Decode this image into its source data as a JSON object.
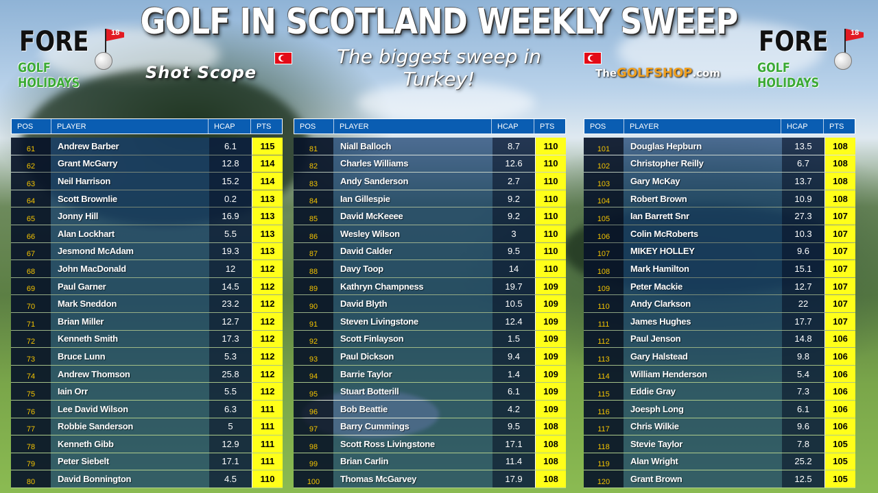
{
  "header": {
    "title": "GOLF IN SCOTLAND WEEKLY SWEEP",
    "subtitle": "The biggest sweep in Turkey!",
    "logo_left": {
      "line1": "FORE",
      "line2": "GOLF HOLIDAYS",
      "badge": "18"
    },
    "logo_right": {
      "line1": "FORE",
      "line2": "GOLF HOLIDAYS",
      "badge": "18"
    },
    "sponsor_shot": "Shot Scope",
    "sponsor_shop": {
      "pre": "The",
      "highlight": "GOLFSHOP",
      "post": ".com"
    }
  },
  "columns": {
    "pos": "POS",
    "player": "PLAYER",
    "hcap": "HCAP",
    "pts": "PTS"
  },
  "tables": [
    {
      "rows": [
        {
          "pos": "61",
          "player": "Andrew Barber",
          "hcap": "6.1",
          "pts": "115"
        },
        {
          "pos": "62",
          "player": "Grant McGarry",
          "hcap": "12.8",
          "pts": "114"
        },
        {
          "pos": "63",
          "player": "Neil Harrison",
          "hcap": "15.2",
          "pts": "114"
        },
        {
          "pos": "64",
          "player": "Scott Brownlie",
          "hcap": "0.2",
          "pts": "113"
        },
        {
          "pos": "65",
          "player": "Jonny Hill",
          "hcap": "16.9",
          "pts": "113"
        },
        {
          "pos": "66",
          "player": "Alan Lockhart",
          "hcap": "5.5",
          "pts": "113"
        },
        {
          "pos": "67",
          "player": "Jesmond McAdam",
          "hcap": "19.3",
          "pts": "113"
        },
        {
          "pos": "68",
          "player": "John MacDonald",
          "hcap": "12",
          "pts": "112"
        },
        {
          "pos": "69",
          "player": "Paul Garner",
          "hcap": "14.5",
          "pts": "112"
        },
        {
          "pos": "70",
          "player": "Mark Sneddon",
          "hcap": "23.2",
          "pts": "112"
        },
        {
          "pos": "71",
          "player": "Brian Miller",
          "hcap": "12.7",
          "pts": "112"
        },
        {
          "pos": "72",
          "player": "Kenneth Smith",
          "hcap": "17.3",
          "pts": "112"
        },
        {
          "pos": "73",
          "player": "Bruce Lunn",
          "hcap": "5.3",
          "pts": "112"
        },
        {
          "pos": "74",
          "player": "Andrew Thomson",
          "hcap": "25.8",
          "pts": "112"
        },
        {
          "pos": "75",
          "player": "Iain Orr",
          "hcap": "5.5",
          "pts": "112"
        },
        {
          "pos": "76",
          "player": "Lee David Wilson",
          "hcap": "6.3",
          "pts": "111"
        },
        {
          "pos": "77",
          "player": "Robbie Sanderson",
          "hcap": "5",
          "pts": "111"
        },
        {
          "pos": "78",
          "player": "Kenneth Gibb",
          "hcap": "12.9",
          "pts": "111"
        },
        {
          "pos": "79",
          "player": "Peter Siebelt",
          "hcap": "17.1",
          "pts": "111"
        },
        {
          "pos": "80",
          "player": "David Bonnington",
          "hcap": "4.5",
          "pts": "110"
        }
      ]
    },
    {
      "rows": [
        {
          "pos": "81",
          "player": "Niall Balloch",
          "hcap": "8.7",
          "pts": "110"
        },
        {
          "pos": "82",
          "player": "Charles Williams",
          "hcap": "12.6",
          "pts": "110"
        },
        {
          "pos": "83",
          "player": "Andy Sanderson",
          "hcap": "2.7",
          "pts": "110"
        },
        {
          "pos": "84",
          "player": "Ian Gillespie",
          "hcap": "9.2",
          "pts": "110"
        },
        {
          "pos": "85",
          "player": "David McKeeee",
          "hcap": "9.2",
          "pts": "110"
        },
        {
          "pos": "86",
          "player": "Wesley Wilson",
          "hcap": "3",
          "pts": "110"
        },
        {
          "pos": "87",
          "player": "David Calder",
          "hcap": "9.5",
          "pts": "110"
        },
        {
          "pos": "88",
          "player": "Davy Toop",
          "hcap": "14",
          "pts": "110"
        },
        {
          "pos": "89",
          "player": "Kathryn Champness",
          "hcap": "19.7",
          "pts": "109"
        },
        {
          "pos": "90",
          "player": "David Blyth",
          "hcap": "10.5",
          "pts": "109"
        },
        {
          "pos": "91",
          "player": "Steven Livingstone",
          "hcap": "12.4",
          "pts": "109"
        },
        {
          "pos": "92",
          "player": "Scott Finlayson",
          "hcap": "1.5",
          "pts": "109"
        },
        {
          "pos": "93",
          "player": "Paul Dickson",
          "hcap": "9.4",
          "pts": "109"
        },
        {
          "pos": "94",
          "player": "Barrie Taylor",
          "hcap": "1.4",
          "pts": "109"
        },
        {
          "pos": "95",
          "player": "Stuart Botterill",
          "hcap": "6.1",
          "pts": "109"
        },
        {
          "pos": "96",
          "player": "Bob Beattie",
          "hcap": "4.2",
          "pts": "109"
        },
        {
          "pos": "97",
          "player": "Barry Cummings",
          "hcap": "9.5",
          "pts": "108"
        },
        {
          "pos": "98",
          "player": "Scott Ross Livingstone",
          "hcap": "17.1",
          "pts": "108"
        },
        {
          "pos": "99",
          "player": "Brian Carlin",
          "hcap": "11.4",
          "pts": "108"
        },
        {
          "pos": "100",
          "player": "Thomas McGarvey",
          "hcap": "17.9",
          "pts": "108"
        }
      ]
    },
    {
      "rows": [
        {
          "pos": "101",
          "player": "Douglas Hepburn",
          "hcap": "13.5",
          "pts": "108"
        },
        {
          "pos": "102",
          "player": "Christopher Reilly",
          "hcap": "6.7",
          "pts": "108"
        },
        {
          "pos": "103",
          "player": "Gary McKay",
          "hcap": "13.7",
          "pts": "108"
        },
        {
          "pos": "104",
          "player": "Robert Brown",
          "hcap": "10.9",
          "pts": "108"
        },
        {
          "pos": "105",
          "player": "Ian Barrett Snr",
          "hcap": "27.3",
          "pts": "107"
        },
        {
          "pos": "106",
          "player": "Colin McRoberts",
          "hcap": "10.3",
          "pts": "107"
        },
        {
          "pos": "107",
          "player": "MIKEY HOLLEY",
          "hcap": "9.6",
          "pts": "107"
        },
        {
          "pos": "108",
          "player": "Mark Hamilton",
          "hcap": "15.1",
          "pts": "107"
        },
        {
          "pos": "109",
          "player": "Peter Mackie",
          "hcap": "12.7",
          "pts": "107"
        },
        {
          "pos": "110",
          "player": "Andy Clarkson",
          "hcap": "22",
          "pts": "107"
        },
        {
          "pos": "111",
          "player": "James Hughes",
          "hcap": "17.7",
          "pts": "107"
        },
        {
          "pos": "112",
          "player": "Paul Jenson",
          "hcap": "14.8",
          "pts": "106"
        },
        {
          "pos": "113",
          "player": "Gary Halstead",
          "hcap": "9.8",
          "pts": "106"
        },
        {
          "pos": "114",
          "player": "William Henderson",
          "hcap": "5.4",
          "pts": "106"
        },
        {
          "pos": "115",
          "player": "Eddie Gray",
          "hcap": "7.3",
          "pts": "106"
        },
        {
          "pos": "116",
          "player": "Joesph Long",
          "hcap": "6.1",
          "pts": "106"
        },
        {
          "pos": "117",
          "player": "Chris Wilkie",
          "hcap": "9.6",
          "pts": "106"
        },
        {
          "pos": "118",
          "player": "Stevie Taylor",
          "hcap": "7.8",
          "pts": "105"
        },
        {
          "pos": "119",
          "player": "Alan Wright",
          "hcap": "25.2",
          "pts": "105"
        },
        {
          "pos": "120",
          "player": "Grant Brown",
          "hcap": "12.5",
          "pts": "105"
        }
      ]
    }
  ]
}
